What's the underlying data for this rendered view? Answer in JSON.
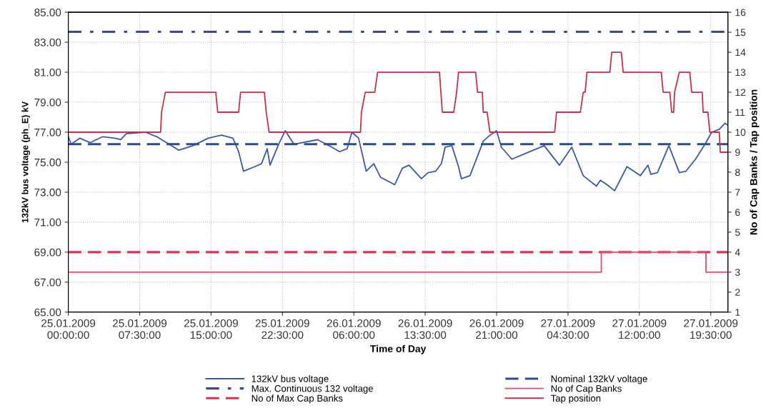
{
  "chart_data": {
    "type": "line",
    "xlabel": "Time of Day",
    "ylabel": "132kV bus voltage (ph_E) kV",
    "y2label": "No of Cap Banks / Tap position",
    "xlim": [
      "2009-01-25T00:00",
      "2009-01-27T21:18"
    ],
    "xticks": [
      {
        "value": "2009-01-25T00:00",
        "label": "25.01.2009\n00:00:00"
      },
      {
        "value": "2009-01-25T07:30",
        "label": "25.01.2009\n07:30:00"
      },
      {
        "value": "2009-01-25T15:00",
        "label": "25.01.2009\n15:00:00"
      },
      {
        "value": "2009-01-25T22:30",
        "label": "25.01.2009\n22:30:00"
      },
      {
        "value": "2009-01-26T06:00",
        "label": "26.01.2009\n06:00:00"
      },
      {
        "value": "2009-01-26T13:30",
        "label": "26.01.2009\n13:30:00"
      },
      {
        "value": "2009-01-26T21:00",
        "label": "26.01.2009\n21:00:00"
      },
      {
        "value": "2009-01-27T04:30",
        "label": "27.01.2009\n04:30:00"
      },
      {
        "value": "2009-01-27T12:00",
        "label": "27.01.2009\n12:00:00"
      },
      {
        "value": "2009-01-27T19:30",
        "label": "27.01.2009\n19:30:00"
      }
    ],
    "ylim": [
      65,
      85
    ],
    "yticks": [
      {
        "value": 65,
        "label": "65.00"
      },
      {
        "value": 67,
        "label": "67.00"
      },
      {
        "value": 69,
        "label": "69.00"
      },
      {
        "value": 71,
        "label": "71.00"
      },
      {
        "value": 73,
        "label": "73.00"
      },
      {
        "value": 75,
        "label": "75.00"
      },
      {
        "value": 77,
        "label": "77.00"
      },
      {
        "value": 79,
        "label": "79.00"
      },
      {
        "value": 81,
        "label": "81.00"
      },
      {
        "value": 83,
        "label": "83.00"
      },
      {
        "value": 85,
        "label": "85.00"
      }
    ],
    "y2lim": [
      1,
      16
    ],
    "y2ticks": [
      1,
      2,
      3,
      4,
      5,
      6,
      7,
      8,
      9,
      10,
      11,
      12,
      13,
      14,
      15,
      16
    ],
    "grid": true,
    "legend": "bottom",
    "marker": "none",
    "series": [
      {
        "name": "132kV bus voltage",
        "color": "#3a5aa8",
        "line_style": "solid",
        "axis": "y",
        "x": [
          "2009-01-25T00:00",
          "2009-01-25T00:18",
          "2009-01-25T01:12",
          "2009-01-25T02:18",
          "2009-01-25T03:36",
          "2009-01-25T04:54",
          "2009-01-25T05:30",
          "2009-01-25T06:06",
          "2009-01-25T08:06",
          "2009-01-25T09:18",
          "2009-01-25T11:06",
          "2009-01-25T11:36",
          "2009-01-25T13:06",
          "2009-01-25T14:42",
          "2009-01-25T16:06",
          "2009-01-25T17:18",
          "2009-01-25T17:54",
          "2009-01-25T18:24",
          "2009-01-25T19:36",
          "2009-01-25T20:18",
          "2009-01-25T20:54",
          "2009-01-25T21:12",
          "2009-01-25T22:06",
          "2009-01-25T22:48",
          "2009-01-25T23:42",
          "2009-01-26T02:12",
          "2009-01-26T03:42",
          "2009-01-26T04:30",
          "2009-01-26T05:18",
          "2009-01-26T05:48",
          "2009-01-26T06:30",
          "2009-01-26T07:18",
          "2009-01-26T08:06",
          "2009-01-26T08:48",
          "2009-01-26T10:18",
          "2009-01-26T11:06",
          "2009-01-26T11:48",
          "2009-01-26T13:06",
          "2009-01-26T13:48",
          "2009-01-26T14:36",
          "2009-01-26T15:12",
          "2009-01-26T15:36",
          "2009-01-26T16:18",
          "2009-01-26T17:00",
          "2009-01-26T17:18",
          "2009-01-26T18:12",
          "2009-01-26T19:36",
          "2009-01-26T20:18",
          "2009-01-26T21:00",
          "2009-01-26T21:30",
          "2009-01-26T22:36",
          "2009-01-27T00:06",
          "2009-01-27T02:00",
          "2009-01-27T03:36",
          "2009-01-27T04:54",
          "2009-01-27T06:06",
          "2009-01-27T07:30",
          "2009-01-27T07:54",
          "2009-01-27T08:36",
          "2009-01-27T09:24",
          "2009-01-27T10:42",
          "2009-01-27T12:06",
          "2009-01-27T12:54",
          "2009-01-27T13:12",
          "2009-01-27T13:54",
          "2009-01-27T15:06",
          "2009-01-27T16:12",
          "2009-01-27T16:54",
          "2009-01-27T17:54",
          "2009-01-27T18:54",
          "2009-01-27T19:36",
          "2009-01-27T20:24",
          "2009-01-27T21:00",
          "2009-01-27T21:12"
        ],
        "values": [
          76.7,
          76.2,
          76.6,
          76.3,
          76.7,
          76.6,
          76.5,
          76.9,
          77.0,
          76.7,
          76.0,
          75.8,
          76.1,
          76.6,
          76.8,
          76.6,
          75.7,
          74.4,
          74.7,
          74.9,
          75.9,
          74.8,
          76.2,
          77.1,
          76.2,
          76.5,
          76.0,
          75.7,
          75.9,
          77.0,
          76.6,
          74.4,
          74.9,
          74.0,
          73.5,
          74.6,
          74.8,
          73.9,
          74.3,
          74.4,
          74.9,
          76.0,
          76.1,
          74.7,
          73.9,
          74.1,
          76.4,
          76.8,
          77.1,
          76.0,
          75.2,
          75.6,
          76.1,
          74.8,
          76.0,
          74.1,
          73.4,
          73.8,
          73.5,
          73.1,
          74.7,
          74.1,
          74.8,
          74.2,
          74.3,
          76.1,
          74.3,
          74.4,
          75.2,
          76.2,
          77.0,
          77.2,
          77.6,
          77.5
        ]
      },
      {
        "name": "Max. Continuous 132 voltage",
        "color": "#3c4a8a",
        "line_style": "dashdot",
        "axis": "y",
        "x": [
          "2009-01-25T00:00",
          "2009-01-27T21:18"
        ],
        "values": [
          83.7,
          83.7
        ]
      },
      {
        "name": "No of Max Cap Banks",
        "color": "#e0304f",
        "line_style": "dashed",
        "axis": "y2",
        "x": [
          "2009-01-25T00:00",
          "2009-01-27T21:18"
        ],
        "values": [
          4,
          4
        ]
      },
      {
        "name": "Nominal 132kV voltage",
        "color": "#2e4a8e",
        "line_style": "dashed",
        "axis": "y",
        "x": [
          "2009-01-25T00:00",
          "2009-01-27T21:18"
        ],
        "values": [
          76.2,
          76.2
        ]
      },
      {
        "name": "No of Cap Banks",
        "color": "#e8486a",
        "line_style": "solid",
        "axis": "y2",
        "x": [
          "2009-01-25T00:00",
          "2009-01-27T08:00",
          "2009-01-27T08:00",
          "2009-01-27T19:00",
          "2009-01-27T19:00",
          "2009-01-27T21:18"
        ],
        "values": [
          3,
          3,
          4,
          4,
          3,
          3
        ]
      },
      {
        "name": "Tap position",
        "color": "#c8304a",
        "line_style": "solid",
        "axis": "y2",
        "x": [
          "2009-01-25T00:00",
          "2009-01-25T09:42",
          "2009-01-25T09:48",
          "2009-01-25T10:12",
          "2009-01-25T15:30",
          "2009-01-25T15:42",
          "2009-01-25T17:54",
          "2009-01-25T18:06",
          "2009-01-25T20:36",
          "2009-01-25T20:48",
          "2009-01-25T21:06",
          "2009-01-26T06:42",
          "2009-01-26T06:48",
          "2009-01-26T07:12",
          "2009-01-26T08:12",
          "2009-01-26T08:30",
          "2009-01-26T15:00",
          "2009-01-26T15:18",
          "2009-01-26T16:30",
          "2009-01-26T16:48",
          "2009-01-26T17:00",
          "2009-01-26T18:48",
          "2009-01-26T19:00",
          "2009-01-26T19:30",
          "2009-01-26T19:36",
          "2009-01-26T20:00",
          "2009-01-26T20:18",
          "2009-01-27T03:06",
          "2009-01-27T03:18",
          "2009-01-27T05:48",
          "2009-01-27T06:06",
          "2009-01-27T06:18",
          "2009-01-27T06:30",
          "2009-01-27T08:54",
          "2009-01-27T09:06",
          "2009-01-27T10:06",
          "2009-01-27T10:18",
          "2009-01-27T14:18",
          "2009-01-27T14:30",
          "2009-01-27T15:12",
          "2009-01-27T15:24",
          "2009-01-27T15:36",
          "2009-01-27T15:42",
          "2009-01-27T16:12",
          "2009-01-27T17:18",
          "2009-01-27T17:30",
          "2009-01-27T18:36",
          "2009-01-27T18:42",
          "2009-01-27T19:12",
          "2009-01-27T19:24",
          "2009-01-27T20:24",
          "2009-01-27T20:30",
          "2009-01-27T21:12"
        ],
        "values": [
          10,
          10,
          11,
          12,
          12,
          11,
          11,
          12,
          12,
          11,
          10,
          10,
          11,
          12,
          12,
          13,
          13,
          11,
          11,
          12,
          13,
          13,
          12,
          12,
          11,
          11,
          10,
          10,
          11,
          11,
          12,
          12,
          13,
          13,
          14,
          14,
          13,
          13,
          12,
          12,
          11,
          11,
          12,
          13,
          13,
          12,
          12,
          11,
          11,
          10,
          10,
          9,
          9
        ]
      }
    ]
  }
}
